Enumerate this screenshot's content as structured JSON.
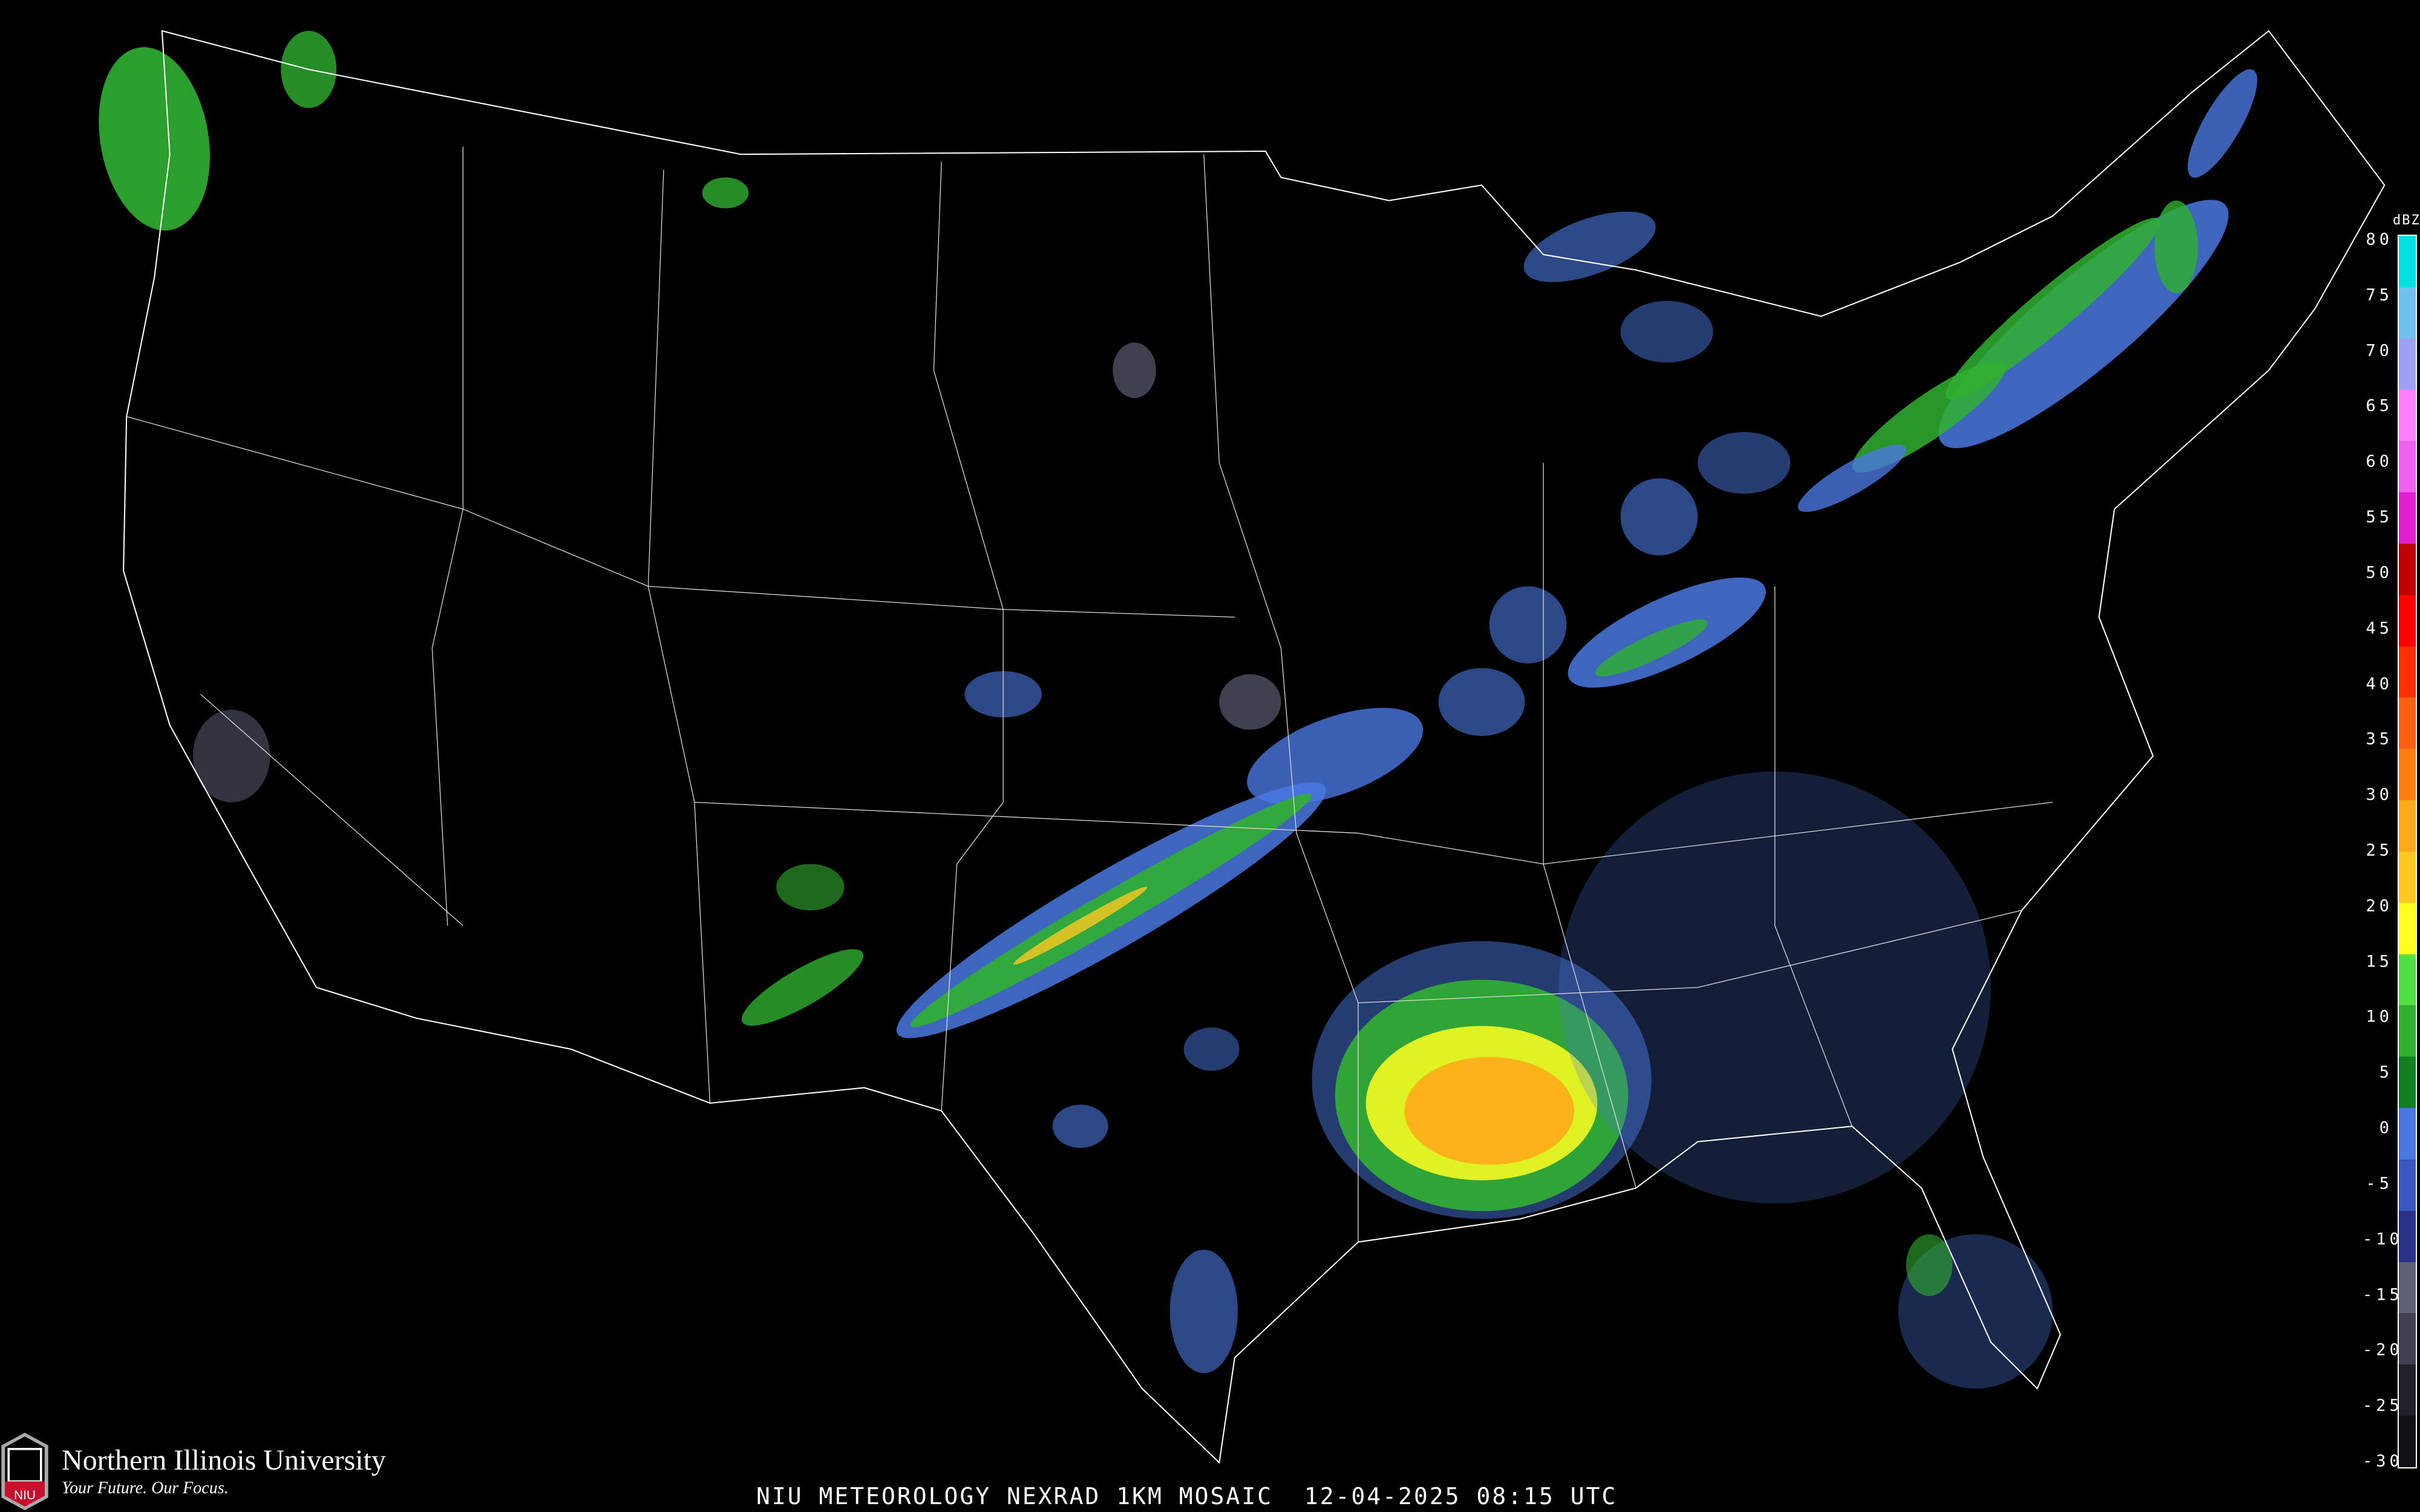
{
  "title": "NIU METEOROLOGY NEXRAD 1KM MOSAIC  12-04-2025 08:15 UTC",
  "logo": {
    "name": "Northern Illinois University",
    "tagline": "Your Future. Our Focus.",
    "mark": "NIU"
  },
  "legend": {
    "unit": "dBZ",
    "labels": [
      "80",
      "75",
      "70",
      "65",
      "60",
      "55",
      "50",
      "45",
      "40",
      "35",
      "30",
      "25",
      "20",
      "15",
      "10",
      "5",
      "0",
      "-5",
      "-10",
      "-15",
      "-20",
      "-25",
      "-30"
    ],
    "colors": [
      "#00e0e0",
      "#70c0f0",
      "#a0a0f0",
      "#ff80ff",
      "#f060f0",
      "#e020d0",
      "#c00000",
      "#ff0000",
      "#ff3000",
      "#ff6010",
      "#ff8010",
      "#ffa818",
      "#ffc820",
      "#ffff20",
      "#50e040",
      "#30b030",
      "#108020",
      "#4a78e0",
      "#3858c0",
      "#283088",
      "#606078",
      "#404050",
      "#202028",
      "#101014"
    ]
  }
}
